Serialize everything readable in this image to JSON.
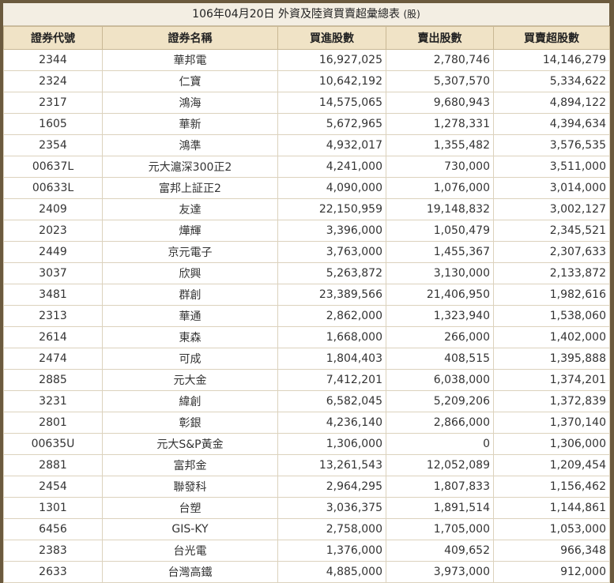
{
  "title": "106年04月20日 外資及陸資買賣超彙總表",
  "title_unit": "(股)",
  "columns": [
    "證券代號",
    "證券名稱",
    "買進股數",
    "賣出股數",
    "買賣超股數"
  ],
  "rows": [
    {
      "code": "2344",
      "name": "華邦電",
      "buy": "16,927,025",
      "sell": "2,780,746",
      "net": "14,146,279"
    },
    {
      "code": "2324",
      "name": "仁寶",
      "buy": "10,642,192",
      "sell": "5,307,570",
      "net": "5,334,622"
    },
    {
      "code": "2317",
      "name": "鴻海",
      "buy": "14,575,065",
      "sell": "9,680,943",
      "net": "4,894,122"
    },
    {
      "code": "1605",
      "name": "華新",
      "buy": "5,672,965",
      "sell": "1,278,331",
      "net": "4,394,634"
    },
    {
      "code": "2354",
      "name": "鴻準",
      "buy": "4,932,017",
      "sell": "1,355,482",
      "net": "3,576,535"
    },
    {
      "code": "00637L",
      "name": "元大滬深300正2",
      "buy": "4,241,000",
      "sell": "730,000",
      "net": "3,511,000"
    },
    {
      "code": "00633L",
      "name": "富邦上証正2",
      "buy": "4,090,000",
      "sell": "1,076,000",
      "net": "3,014,000"
    },
    {
      "code": "2409",
      "name": "友達",
      "buy": "22,150,959",
      "sell": "19,148,832",
      "net": "3,002,127"
    },
    {
      "code": "2023",
      "name": "燁輝",
      "buy": "3,396,000",
      "sell": "1,050,479",
      "net": "2,345,521"
    },
    {
      "code": "2449",
      "name": "京元電子",
      "buy": "3,763,000",
      "sell": "1,455,367",
      "net": "2,307,633"
    },
    {
      "code": "3037",
      "name": "欣興",
      "buy": "5,263,872",
      "sell": "3,130,000",
      "net": "2,133,872"
    },
    {
      "code": "3481",
      "name": "群創",
      "buy": "23,389,566",
      "sell": "21,406,950",
      "net": "1,982,616"
    },
    {
      "code": "2313",
      "name": "華通",
      "buy": "2,862,000",
      "sell": "1,323,940",
      "net": "1,538,060"
    },
    {
      "code": "2614",
      "name": "東森",
      "buy": "1,668,000",
      "sell": "266,000",
      "net": "1,402,000"
    },
    {
      "code": "2474",
      "name": "可成",
      "buy": "1,804,403",
      "sell": "408,515",
      "net": "1,395,888"
    },
    {
      "code": "2885",
      "name": "元大金",
      "buy": "7,412,201",
      "sell": "6,038,000",
      "net": "1,374,201"
    },
    {
      "code": "3231",
      "name": "緯創",
      "buy": "6,582,045",
      "sell": "5,209,206",
      "net": "1,372,839"
    },
    {
      "code": "2801",
      "name": "彰銀",
      "buy": "4,236,140",
      "sell": "2,866,000",
      "net": "1,370,140"
    },
    {
      "code": "00635U",
      "name": "元大S&P黃金",
      "buy": "1,306,000",
      "sell": "0",
      "net": "1,306,000"
    },
    {
      "code": "2881",
      "name": "富邦金",
      "buy": "13,261,543",
      "sell": "12,052,089",
      "net": "1,209,454"
    },
    {
      "code": "2454",
      "name": "聯發科",
      "buy": "2,964,295",
      "sell": "1,807,833",
      "net": "1,156,462"
    },
    {
      "code": "1301",
      "name": "台塑",
      "buy": "3,036,375",
      "sell": "1,891,514",
      "net": "1,144,861"
    },
    {
      "code": "6456",
      "name": "GIS-KY",
      "buy": "2,758,000",
      "sell": "1,705,000",
      "net": "1,053,000"
    },
    {
      "code": "2383",
      "name": "台光電",
      "buy": "1,376,000",
      "sell": "409,652",
      "net": "966,348"
    },
    {
      "code": "2633",
      "name": "台灣高鐵",
      "buy": "4,885,000",
      "sell": "3,973,000",
      "net": "912,000"
    }
  ]
}
